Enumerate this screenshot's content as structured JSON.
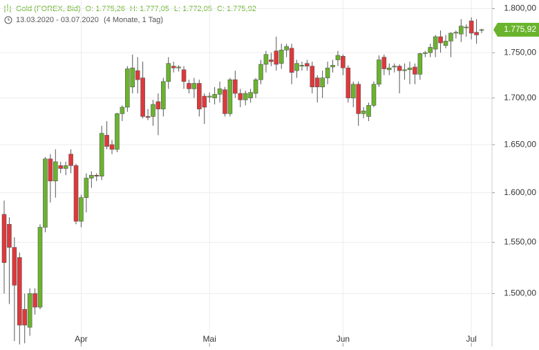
{
  "chart_data": {
    "type": "candlestick",
    "title": "Gold (FOREX, Bid)",
    "ohlc_labels": [
      "O: 1.775,26",
      "H: 1.777,05",
      "L: 1.772,05",
      "C: 1.775,92"
    ],
    "date_range": "13.03.2020 - 03.07.2020",
    "period": "(4 Monate, 1 Tag)",
    "log_scale": true,
    "grid": true,
    "up_color": "#6ab42d",
    "down_color": "#e0383a",
    "ylim": [
      1450,
      1810
    ],
    "yticks": [
      {
        "value": 1500,
        "label": "1.500,00"
      },
      {
        "value": 1550,
        "label": "1.550,00"
      },
      {
        "value": 1600,
        "label": "1.600,00"
      },
      {
        "value": 1650,
        "label": "1.650,00"
      },
      {
        "value": 1700,
        "label": "1.700,00"
      },
      {
        "value": 1750,
        "label": "1.750,00"
      },
      {
        "value": 1800,
        "label": "1.800,00"
      }
    ],
    "last_price": {
      "value": 1775.92,
      "label": "1.775,92"
    },
    "categories": [
      null,
      null,
      null,
      null,
      null,
      null,
      null,
      null,
      null,
      null,
      null,
      null,
      null,
      null,
      null,
      "Apr",
      null,
      null,
      null,
      null,
      null,
      null,
      null,
      null,
      null,
      null,
      null,
      null,
      null,
      null,
      null,
      null,
      null,
      null,
      null,
      null,
      null,
      null,
      null,
      null,
      "Mai",
      null,
      null,
      null,
      null,
      null,
      null,
      null,
      null,
      null,
      null,
      null,
      null,
      null,
      null,
      null,
      null,
      null,
      null,
      null,
      null,
      null,
      null,
      null,
      null,
      null,
      "Jun",
      null,
      null,
      null,
      null,
      null,
      null,
      null,
      null,
      null,
      null,
      null,
      null,
      null,
      null,
      null,
      null,
      null,
      null,
      null,
      null,
      null,
      null,
      null,
      null,
      "Jul",
      null,
      null
    ],
    "open": [
      1578,
      1568,
      1545,
      1535,
      1485,
      1468,
      1500,
      1487,
      1565,
      1635,
      1612,
      1628,
      1625,
      1640,
      1628,
      1571,
      1595,
      1615,
      1618,
      1617,
      1660,
      1650,
      1645,
      1683,
      1690,
      1712,
      1730,
      1722,
      1680,
      1680,
      1696,
      1688,
      1718,
      1735,
      1733,
      1731,
      1716,
      1710,
      1716,
      1702,
      1701,
      1700,
      1704,
      1709,
      1683,
      1720,
      1705,
      1698,
      1700,
      1705,
      1720,
      1737,
      1742,
      1752,
      1738,
      1753,
      1755,
      1730,
      1735,
      1738,
      1735,
      1722,
      1712,
      1722,
      1734,
      1742,
      1746,
      1733,
      1700,
      1715,
      1683,
      1680,
      1692,
      1715,
      1745,
      1731,
      1734,
      1735,
      1730,
      1731,
      1734,
      1726,
      1749,
      1750,
      1754,
      1768,
      1758,
      1763,
      1772,
      1771,
      1778,
      1786,
      1773,
      1775.26
    ],
    "high": [
      1592,
      1575,
      1555,
      1540,
      1500,
      1505,
      1505,
      1568,
      1637,
      1640,
      1645,
      1632,
      1632,
      1645,
      1630,
      1598,
      1620,
      1622,
      1620,
      1670,
      1675,
      1655,
      1684,
      1692,
      1735,
      1748,
      1745,
      1740,
      1688,
      1698,
      1705,
      1722,
      1745,
      1740,
      1736,
      1735,
      1720,
      1722,
      1720,
      1705,
      1706,
      1712,
      1718,
      1712,
      1722,
      1730,
      1710,
      1708,
      1710,
      1722,
      1742,
      1752,
      1750,
      1768,
      1760,
      1760,
      1760,
      1742,
      1740,
      1742,
      1740,
      1725,
      1730,
      1740,
      1742,
      1752,
      1748,
      1736,
      1718,
      1718,
      1690,
      1695,
      1718,
      1747,
      1748,
      1738,
      1738,
      1737,
      1738,
      1740,
      1738,
      1750,
      1752,
      1760,
      1770,
      1775,
      1770,
      1773,
      1775,
      1788,
      1782,
      1790,
      1788,
      1777.05
    ],
    "low": [
      1500,
      1490,
      1455,
      1452,
      1453,
      1460,
      1480,
      1485,
      1560,
      1590,
      1595,
      1620,
      1618,
      1620,
      1568,
      1565,
      1580,
      1605,
      1612,
      1613,
      1645,
      1640,
      1642,
      1675,
      1685,
      1705,
      1705,
      1678,
      1676,
      1670,
      1660,
      1680,
      1710,
      1728,
      1729,
      1710,
      1705,
      1700,
      1680,
      1672,
      1695,
      1693,
      1695,
      1680,
      1680,
      1700,
      1690,
      1692,
      1695,
      1700,
      1715,
      1728,
      1735,
      1730,
      1732,
      1745,
      1715,
      1722,
      1730,
      1730,
      1705,
      1695,
      1700,
      1715,
      1728,
      1735,
      1725,
      1695,
      1690,
      1670,
      1678,
      1675,
      1690,
      1712,
      1725,
      1725,
      1728,
      1705,
      1720,
      1715,
      1715,
      1720,
      1745,
      1745,
      1745,
      1750,
      1755,
      1745,
      1766,
      1762,
      1768,
      1765,
      1760,
      1772.05
    ],
    "close": [
      1530,
      1545,
      1508,
      1470,
      1470,
      1500,
      1487,
      1565,
      1635,
      1612,
      1632,
      1625,
      1628,
      1628,
      1571,
      1595,
      1615,
      1618,
      1617,
      1662,
      1648,
      1645,
      1683,
      1690,
      1732,
      1733,
      1720,
      1680,
      1679,
      1693,
      1688,
      1718,
      1738,
      1733,
      1734,
      1718,
      1710,
      1716,
      1688,
      1690,
      1702,
      1704,
      1710,
      1683,
      1720,
      1705,
      1698,
      1705,
      1706,
      1720,
      1737,
      1748,
      1740,
      1737,
      1753,
      1757,
      1728,
      1738,
      1736,
      1735,
      1712,
      1712,
      1722,
      1733,
      1736,
      1747,
      1733,
      1700,
      1715,
      1683,
      1686,
      1692,
      1715,
      1742,
      1732,
      1733,
      1735,
      1730,
      1731,
      1733,
      1726,
      1749,
      1750,
      1756,
      1768,
      1761,
      1763,
      1772,
      1773,
      1780,
      1779,
      1772,
      1770,
      1775.92
    ]
  }
}
